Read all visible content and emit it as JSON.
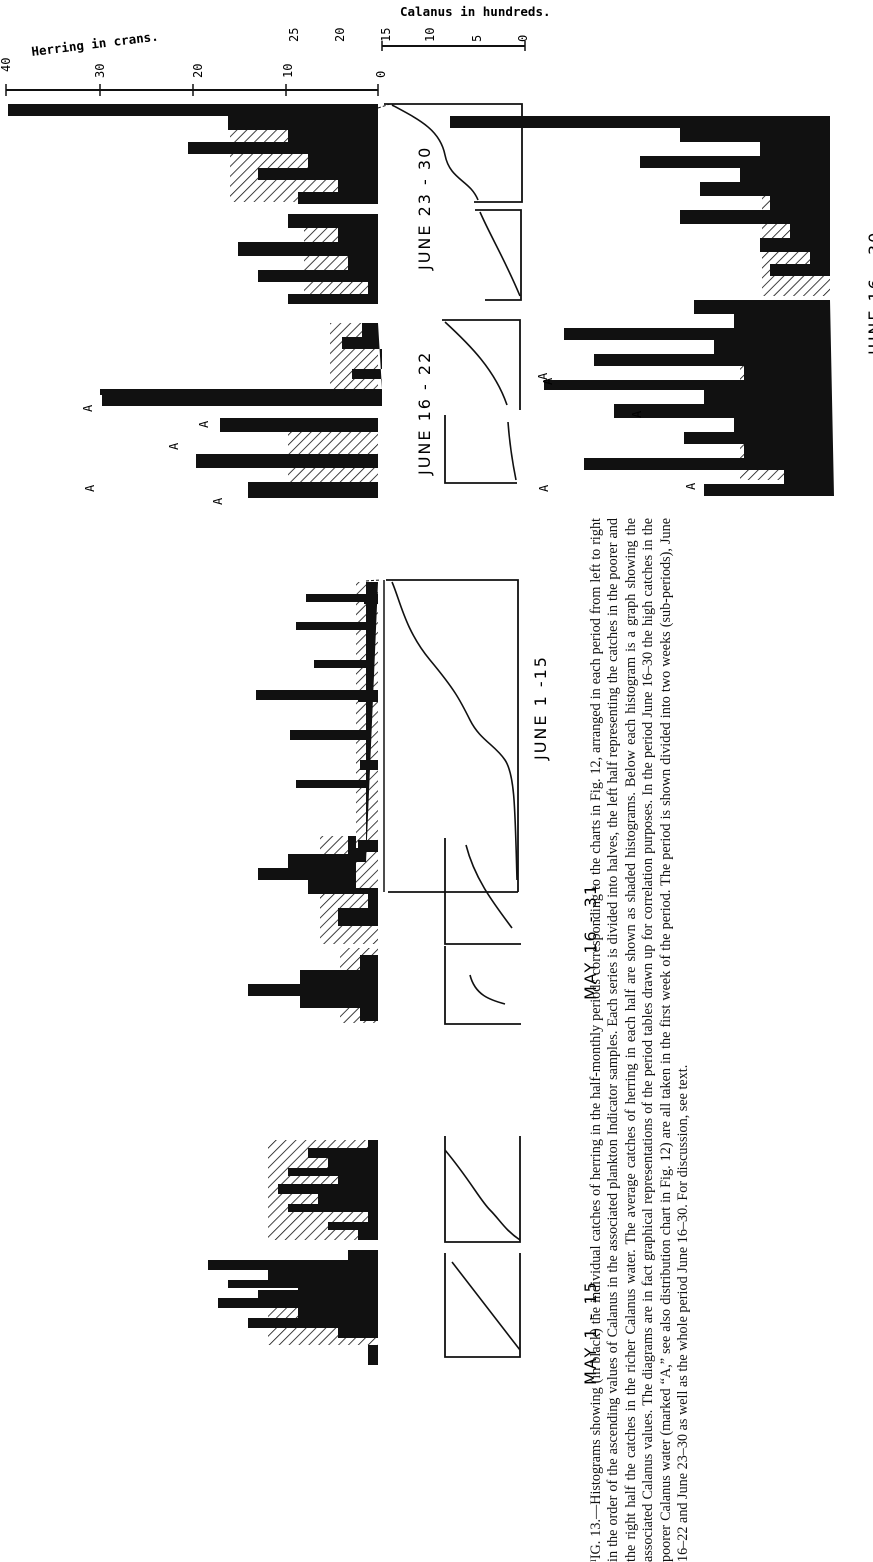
{
  "figure": {
    "herring_axis_label": "Herring in crans.",
    "herring_ticks": [
      "40",
      "30",
      "20",
      "10",
      "0"
    ],
    "calanus_axis_label": "Calanus in hundreds.",
    "calanus_ticks": [
      "25",
      "20",
      "15",
      "10",
      "5",
      "0"
    ],
    "marker": "A",
    "panels": [
      {
        "label": "MAY 1 - 15"
      },
      {
        "label": "MAY 16 - 31"
      },
      {
        "label": "JUNE 1 -15"
      },
      {
        "label": "JUNE 16 - 22"
      },
      {
        "label": "JUNE 23 - 30"
      },
      {
        "label": "JUNE 16 - 30"
      }
    ]
  },
  "caption": {
    "text": "ᴵIG. 13.—Histograms showing (in black) the individual catches of herring in the half-monthly periods corresponding to the charts in Fig. 12, arranged in each period from left to right in the order of the ascending values of Calanus in the associated plankton Indicator samples. Each series is divided into halves, the left half representing the catches in the poorer and the right half the catches in the richer Calanus water. The average catches of herring in each half are shown as shaded histograms. Below each histogram is a graph showing the associated Calanus values. The diagrams are in fact graphical representations of the period tables drawn up for correlation purposes. In the period June 16–30 the high catches in the poorer Calanus water (marked “A,” see also distribution chart in Fig. 12) are all taken in the first week of the period. The period is shown divided into two weeks (sub-periods), June 16–22 and June 23–30 as well as the whole period June 16–30. For discussion, see text."
  }
}
